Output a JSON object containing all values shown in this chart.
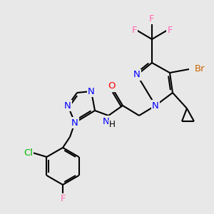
{
  "bg_color": "#e8e8e8",
  "atom_colors": {
    "N": "#0000ff",
    "O": "#ff0000",
    "F": "#ff69b4",
    "Cl": "#00bb00",
    "Br": "#cc6600",
    "C": "#000000"
  },
  "font_size": 9.5,
  "lw": 1.5
}
